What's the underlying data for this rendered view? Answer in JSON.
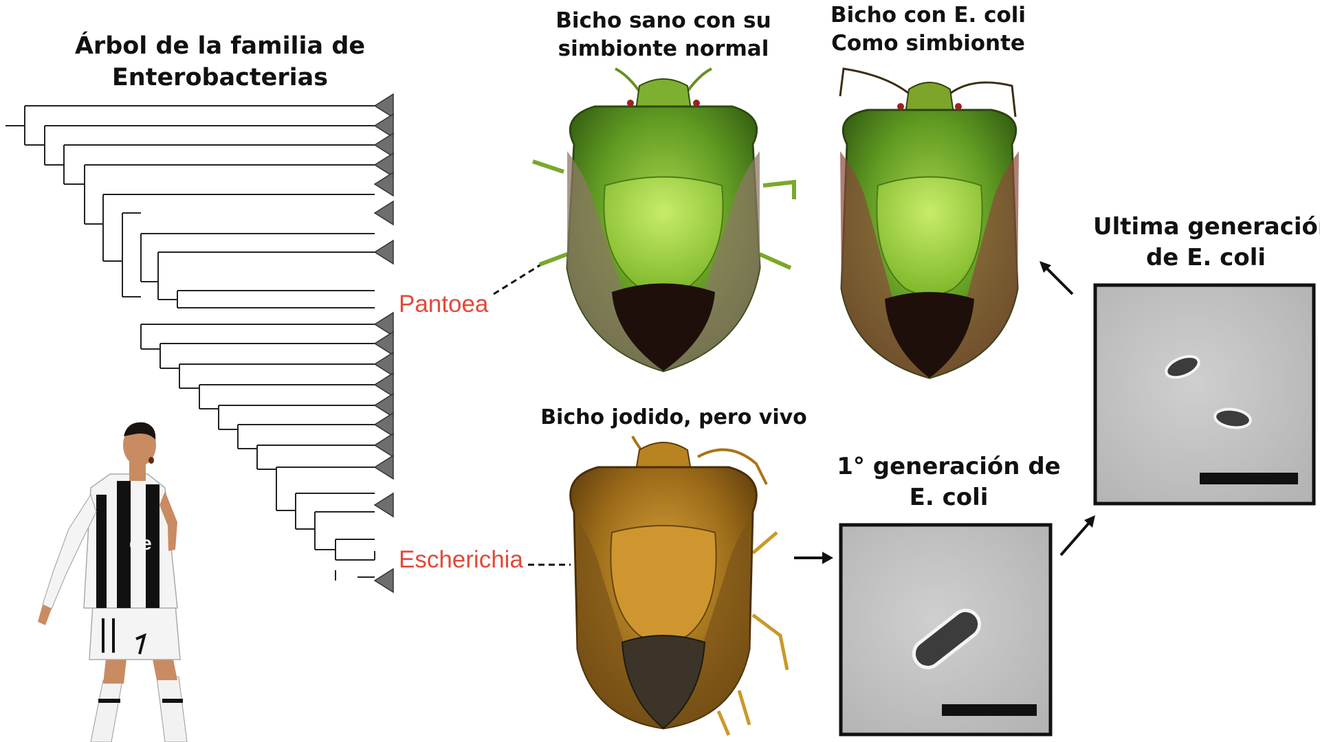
{
  "tree_title": {
    "line1": "Árbol de la familia de",
    "line2": "Enterobacterias"
  },
  "clades": {
    "pantoea": "Pantoea",
    "escherichia": "Escherichia"
  },
  "bugs": {
    "healthy": {
      "line1": "Bicho sano con su",
      "line2": "simbionte normal"
    },
    "ecoli": {
      "line1": "Bicho con E. coli",
      "line2": "Como simbionte"
    },
    "damaged": {
      "line1": "Bicho jodido, pero vivo"
    }
  },
  "micrographs": {
    "first": {
      "line1": "1° generación de",
      "line2": "E. coli"
    },
    "last": {
      "line1": "Ultima generación",
      "line2": "de E. coli"
    }
  },
  "colors": {
    "clade_label": "#e04a3a",
    "bug_green": "#6aa52a",
    "bug_brown": "#b07a1a",
    "micrograph_bg": "#bdbdbd"
  },
  "icons": [
    "phylogenetic-tree",
    "collapsed-clade-triangle",
    "stink-bug-image",
    "footballer-figure",
    "bacteria-micrograph",
    "arrow-icon"
  ]
}
